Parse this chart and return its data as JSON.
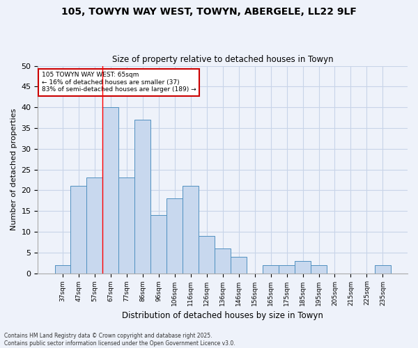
{
  "title_line1": "105, TOWYN WAY WEST, TOWYN, ABERGELE, LL22 9LF",
  "title_line2": "Size of property relative to detached houses in Towyn",
  "xlabel": "Distribution of detached houses by size in Towyn",
  "ylabel": "Number of detached properties",
  "categories": [
    "37sqm",
    "47sqm",
    "57sqm",
    "67sqm",
    "77sqm",
    "86sqm",
    "96sqm",
    "106sqm",
    "116sqm",
    "126sqm",
    "136sqm",
    "146sqm",
    "156sqm",
    "165sqm",
    "175sqm",
    "185sqm",
    "195sqm",
    "205sqm",
    "215sqm",
    "225sqm",
    "235sqm"
  ],
  "values": [
    2,
    21,
    23,
    40,
    23,
    37,
    14,
    18,
    21,
    9,
    6,
    4,
    0,
    2,
    2,
    3,
    2,
    0,
    0,
    0,
    2
  ],
  "bar_color": "#C8D8EE",
  "bar_edge_color": "#5090C0",
  "grid_color": "#C8D4E8",
  "background_color": "#EEF2FA",
  "annotation_text": "105 TOWYN WAY WEST: 65sqm\n← 16% of detached houses are smaller (37)\n83% of semi-detached houses are larger (189) →",
  "annotation_box_color": "#FFFFFF",
  "annotation_box_edge": "#CC0000",
  "footer_text": "Contains HM Land Registry data © Crown copyright and database right 2025.\nContains public sector information licensed under the Open Government Licence v3.0.",
  "ylim": [
    0,
    50
  ],
  "yticks": [
    0,
    5,
    10,
    15,
    20,
    25,
    30,
    35,
    40,
    45,
    50
  ]
}
